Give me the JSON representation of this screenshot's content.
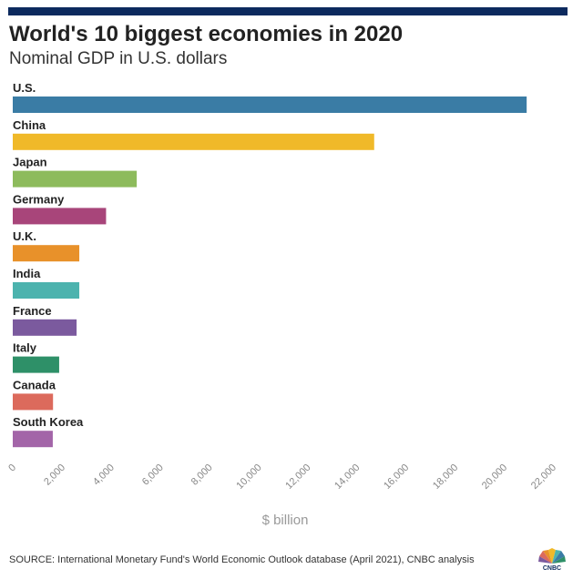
{
  "header": {
    "title": "World's 10 biggest economies in 2020",
    "subtitle": "Nominal GDP in U.S. dollars"
  },
  "footer": {
    "source": "SOURCE: International Monetary Fund's World Economic Outlook database (April 2021), CNBC analysis",
    "logo_text": "CNBC"
  },
  "chart_data": {
    "type": "bar",
    "orientation": "horizontal",
    "title": "World's 10 biggest economies in 2020",
    "subtitle": "Nominal GDP in U.S. dollars",
    "xlabel": "$ billion",
    "ylabel": "",
    "categories": [
      "U.S.",
      "China",
      "Japan",
      "Germany",
      "U.K.",
      "India",
      "France",
      "Italy",
      "Canada",
      "South Korea"
    ],
    "values": [
      20930,
      14720,
      5050,
      3800,
      2710,
      2710,
      2600,
      1890,
      1640,
      1630
    ],
    "colors": [
      "#3a7ca5",
      "#f0b929",
      "#8dbb5c",
      "#a8457a",
      "#e8912a",
      "#4cb3ae",
      "#7b5a9e",
      "#2e9068",
      "#dc6a5c",
      "#a365a8"
    ],
    "xlim": [
      0,
      22000
    ],
    "xticks": [
      "0",
      "2,000",
      "4,000",
      "6,000",
      "8,000",
      "10,000",
      "12,000",
      "14,000",
      "16,000",
      "18,000",
      "20,000",
      "22,000"
    ],
    "grid": false,
    "legend": "none"
  }
}
